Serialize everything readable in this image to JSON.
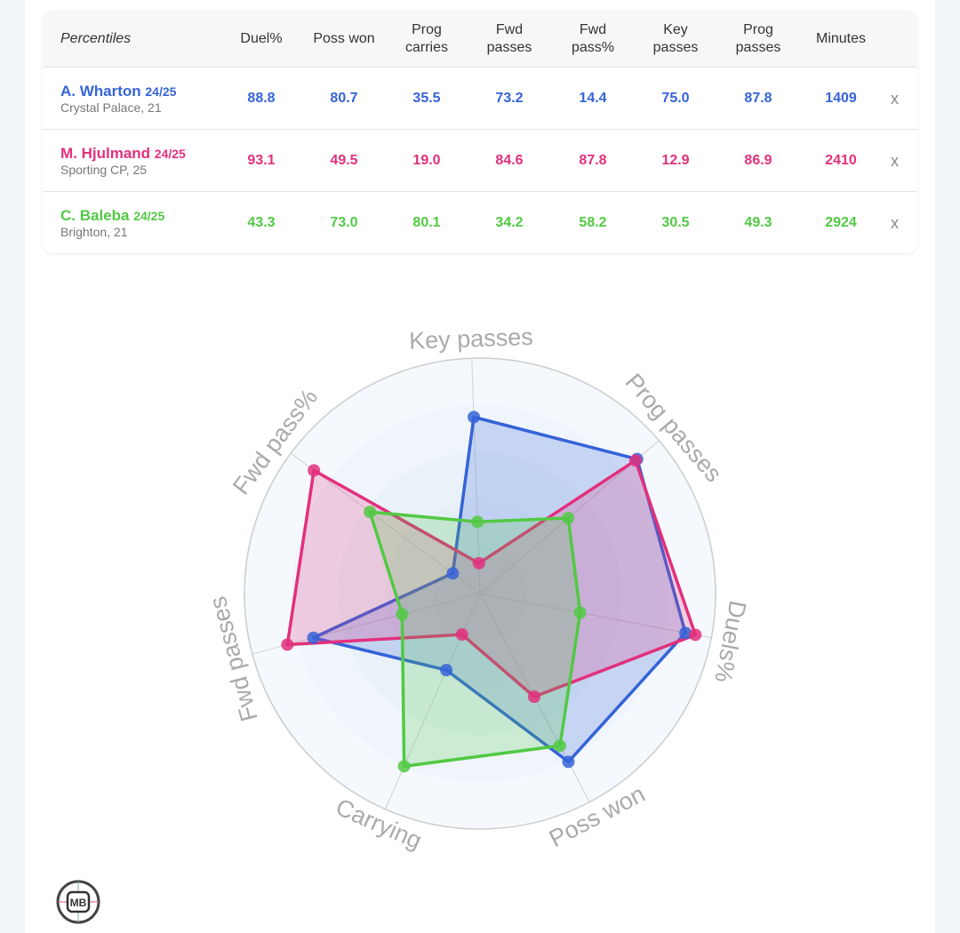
{
  "table": {
    "header_label": "Percentiles",
    "columns": [
      "Duel%",
      "Poss won",
      "Prog carries",
      "Fwd passes",
      "Fwd pass%",
      "Key passes",
      "Prog passes",
      "Minutes"
    ],
    "remove_label": "x",
    "players": [
      {
        "name": "A. Wharton",
        "season": "24/25",
        "sub": "Crystal Palace, 21",
        "color": "#3563d8",
        "values": [
          "88.8",
          "80.7",
          "35.5",
          "73.2",
          "14.4",
          "75.0",
          "87.8",
          "1409"
        ]
      },
      {
        "name": "M. Hjulmand",
        "season": "24/25",
        "sub": "Sporting CP, 25",
        "color": "#e2307c",
        "values": [
          "93.1",
          "49.5",
          "19.0",
          "84.6",
          "87.8",
          "12.9",
          "86.9",
          "2410"
        ]
      },
      {
        "name": "C. Baleba",
        "season": "24/25",
        "sub": "Brighton, 21",
        "color": "#52c944",
        "values": [
          "43.3",
          "73.0",
          "80.1",
          "34.2",
          "58.2",
          "30.5",
          "49.3",
          "2924"
        ]
      }
    ]
  },
  "chart_data": {
    "type": "radar",
    "axes": [
      "Key passes",
      "Prog passes",
      "Duels%",
      "Poss won",
      "Carrying",
      "Fwd passes",
      "Fwd pass%"
    ],
    "range": [
      0,
      100
    ],
    "series": [
      {
        "name": "A. Wharton",
        "color": "#3563d8",
        "values": [
          75.0,
          87.8,
          88.8,
          80.7,
          35.5,
          73.2,
          14.4
        ]
      },
      {
        "name": "M. Hjulmand",
        "color": "#e2307c",
        "values": [
          12.9,
          86.9,
          93.1,
          49.5,
          19.0,
          84.6,
          87.8
        ]
      },
      {
        "name": "C. Baleba",
        "color": "#52c944",
        "values": [
          30.5,
          49.3,
          43.3,
          73.0,
          80.1,
          34.2,
          58.2
        ]
      }
    ]
  },
  "logo": "MB"
}
